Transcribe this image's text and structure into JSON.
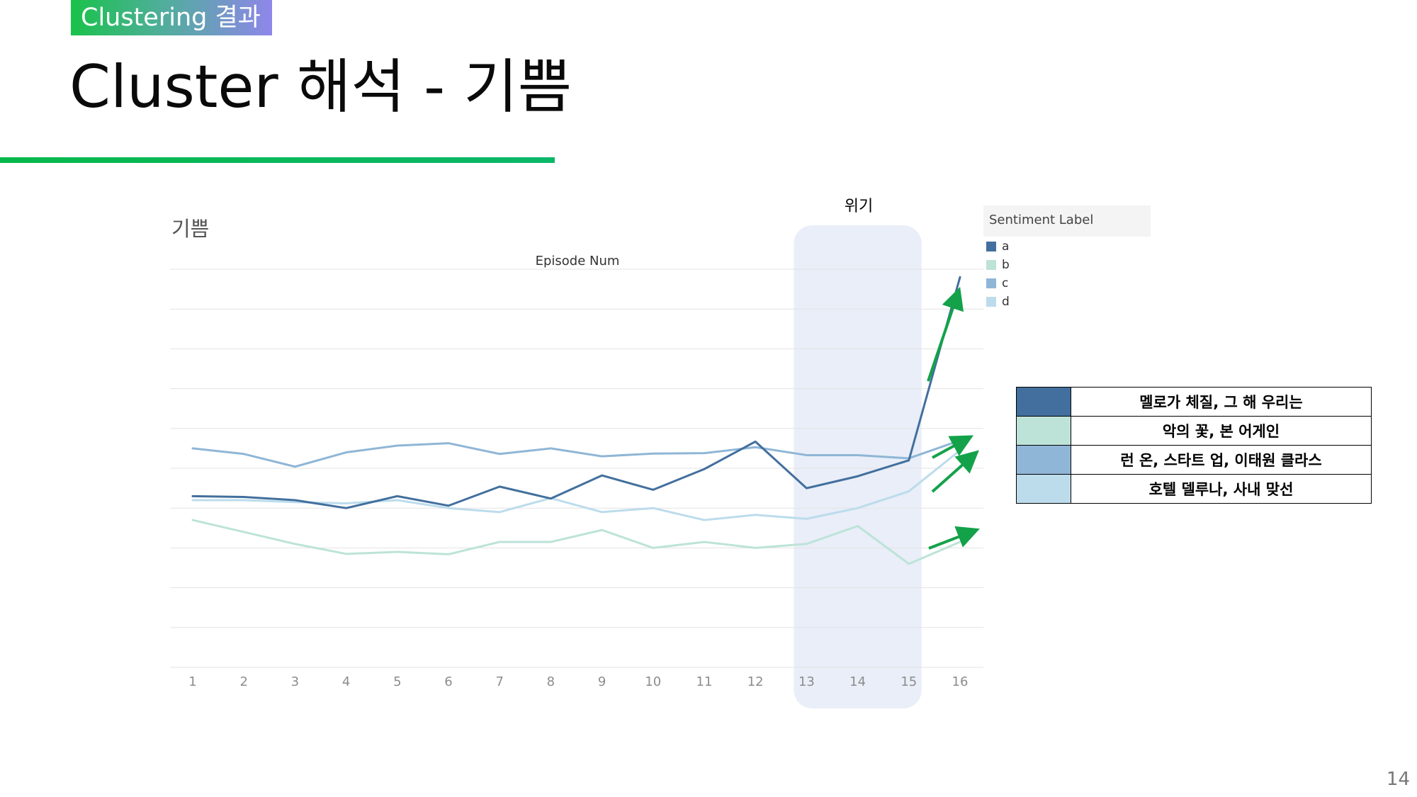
{
  "header": {
    "tag": "Clustering 결과",
    "title": "Cluster 해석 - 기쁨"
  },
  "page_number": "14",
  "colors": {
    "accent_green": "#0bb860",
    "arrow_green": "#13a24a",
    "crisis_band": "#e9eef8",
    "a": "#426f9d",
    "b": "#bde3d8",
    "c": "#8fb6d6",
    "d": "#bcdcec"
  },
  "chart_data": {
    "type": "line",
    "title": "기쁨",
    "xlabel": "Episode Num",
    "ylabel": "",
    "x": [
      1,
      2,
      3,
      4,
      5,
      6,
      7,
      8,
      9,
      10,
      11,
      12,
      13,
      14,
      15,
      16
    ],
    "ylim": [
      0,
      10
    ],
    "grid": true,
    "legend": {
      "title": "Sentiment Label",
      "placement": "right"
    },
    "series": [
      {
        "name": "a",
        "color": "#426f9d",
        "values": [
          4.3,
          4.28,
          4.2,
          4.0,
          4.3,
          4.06,
          4.54,
          4.24,
          4.82,
          4.46,
          4.98,
          5.67,
          4.5,
          4.8,
          5.2,
          9.8
        ]
      },
      {
        "name": "b",
        "color": "#bde3d8",
        "values": [
          3.7,
          3.4,
          3.1,
          2.85,
          2.9,
          2.84,
          3.15,
          3.15,
          3.45,
          3.0,
          3.15,
          3.0,
          3.1,
          3.55,
          2.6,
          3.15
        ]
      },
      {
        "name": "c",
        "color": "#8fb6d6",
        "values": [
          5.5,
          5.36,
          5.04,
          5.4,
          5.57,
          5.63,
          5.36,
          5.5,
          5.3,
          5.37,
          5.38,
          5.53,
          5.33,
          5.33,
          5.25,
          5.7
        ]
      },
      {
        "name": "d",
        "color": "#bcdcec",
        "values": [
          4.2,
          4.2,
          4.15,
          4.12,
          4.2,
          4.0,
          3.9,
          4.25,
          3.9,
          4.0,
          3.7,
          3.83,
          3.73,
          4.0,
          4.42,
          5.45
        ]
      }
    ],
    "annotations": [
      {
        "text": "위기",
        "x_start": 13,
        "x_end": 15
      }
    ]
  },
  "cluster_table": [
    {
      "label": "a",
      "color": "#426f9d",
      "text": "멜로가 체질, 그 해 우리는"
    },
    {
      "label": "b",
      "color": "#bde3d8",
      "text": "악의 꽃, 본 어게인"
    },
    {
      "label": "c",
      "color": "#8fb6d6",
      "text": "런 온, 스타트 업, 이태원 클라스"
    },
    {
      "label": "d",
      "color": "#bcdcec",
      "text": "호텔 델루나, 사내 맞선"
    }
  ]
}
